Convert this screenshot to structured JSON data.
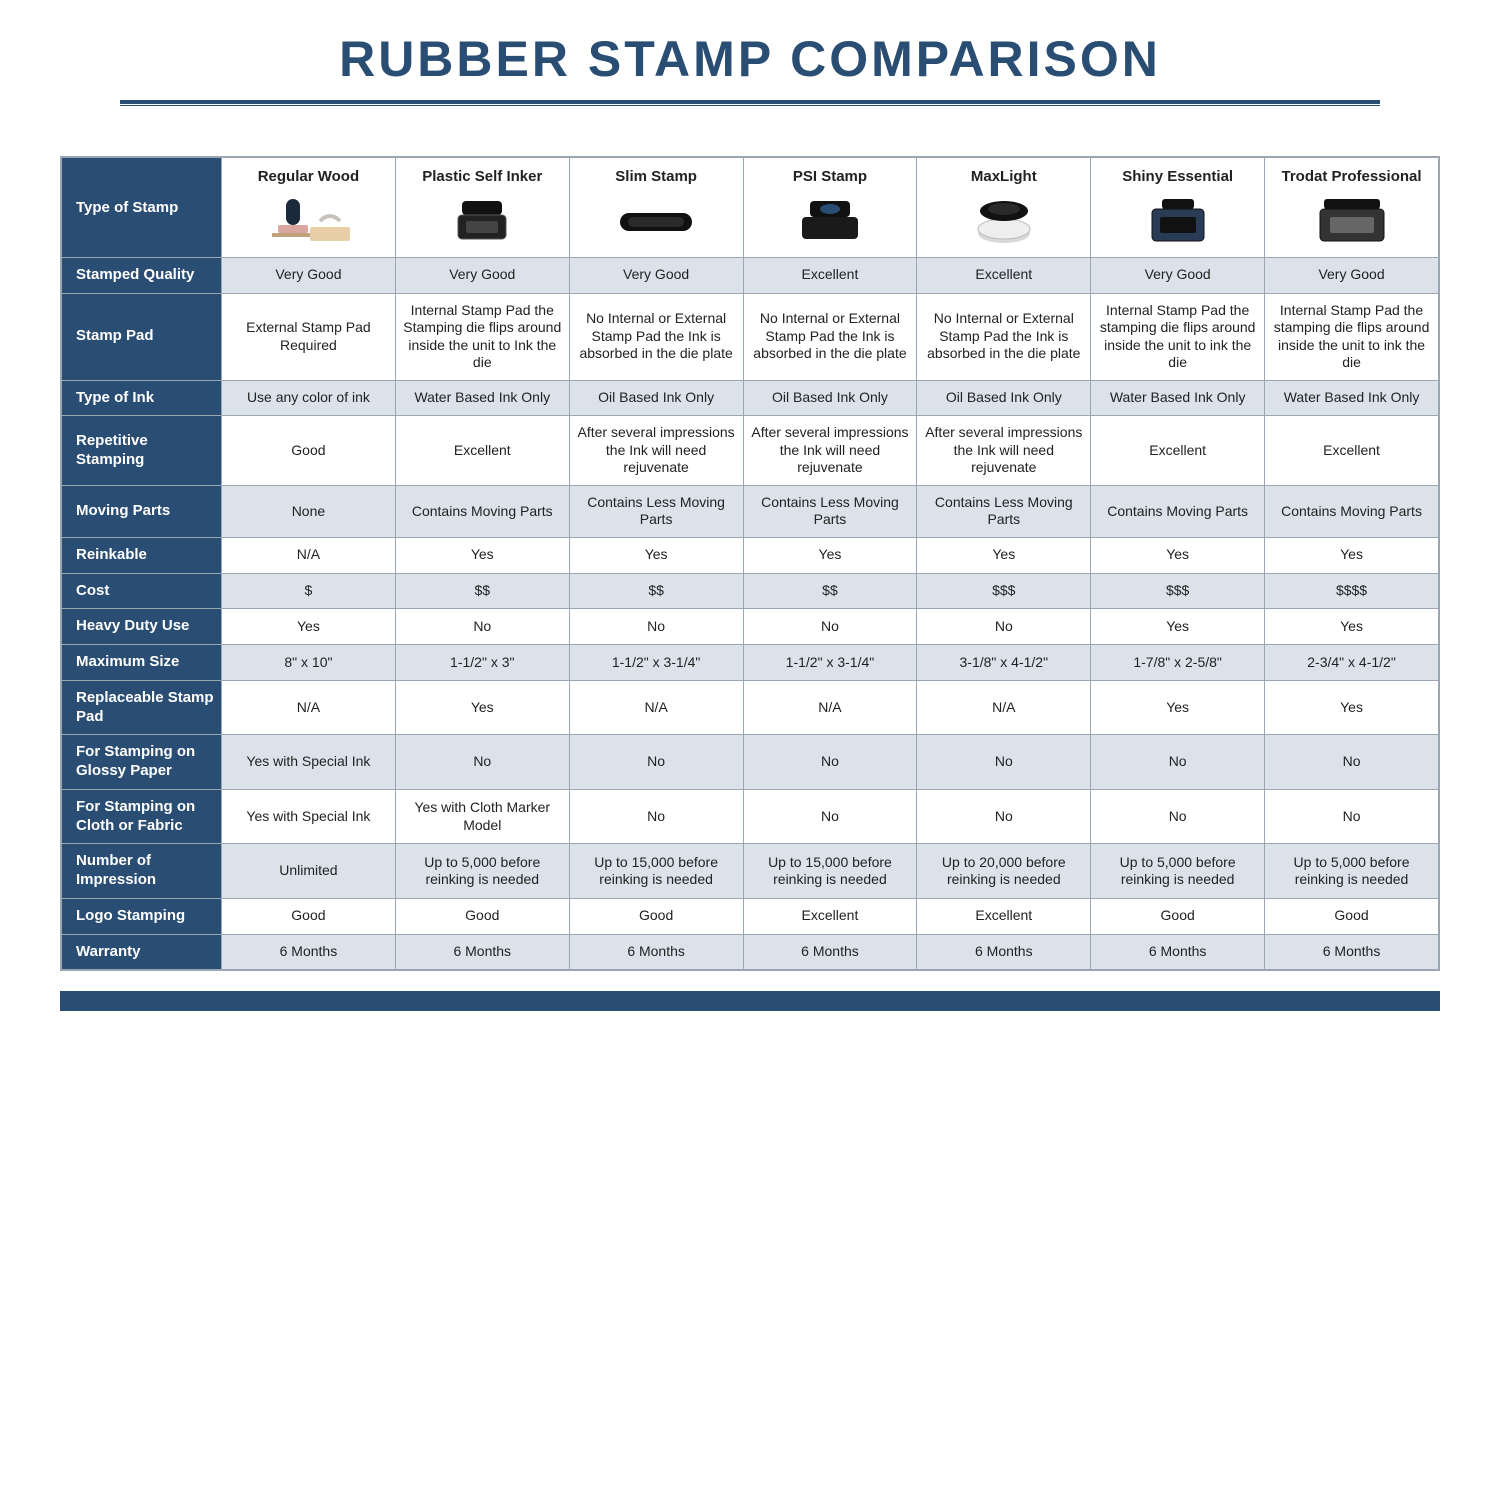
{
  "title": "RUBBER STAMP COMPARISON",
  "colors": {
    "navy": "#2a4d73",
    "zebra": "#dbe2ea",
    "border": "#9aa6b2",
    "white": "#ffffff",
    "text": "#222222"
  },
  "corner_label": "Type of Stamp",
  "columns": [
    {
      "label": "Regular Wood",
      "icon": "wood"
    },
    {
      "label": "Plastic Self Inker",
      "icon": "selfinker"
    },
    {
      "label": "Slim Stamp",
      "icon": "slim"
    },
    {
      "label": "PSI Stamp",
      "icon": "psi"
    },
    {
      "label": "MaxLight",
      "icon": "maxlight"
    },
    {
      "label": "Shiny Essential",
      "icon": "shiny"
    },
    {
      "label": "Trodat Professional",
      "icon": "trodat"
    }
  ],
  "rows": [
    {
      "label": "Stamped Quality",
      "cells": [
        "Very Good",
        "Very Good",
        "Very Good",
        "Excellent",
        "Excellent",
        "Very Good",
        "Very Good"
      ]
    },
    {
      "label": "Stamp Pad",
      "cells": [
        "External Stamp Pad Required",
        "Internal Stamp Pad the Stamping die flips around inside the unit to Ink the die",
        "No Internal or External Stamp Pad the Ink is absorbed in the die plate",
        "No Internal or External Stamp Pad the Ink is absorbed in the die plate",
        "No Internal or External Stamp Pad the Ink is absorbed in the die plate",
        "Internal Stamp Pad the stamping die flips around inside the unit to ink the die",
        "Internal Stamp Pad the stamping die flips around inside the unit to ink the die"
      ]
    },
    {
      "label": "Type of Ink",
      "cells": [
        "Use any color of ink",
        "Water Based Ink Only",
        "Oil Based Ink Only",
        "Oil Based Ink Only",
        "Oil Based Ink Only",
        "Water Based Ink Only",
        "Water Based Ink Only"
      ]
    },
    {
      "label": "Repetitive Stamping",
      "cells": [
        "Good",
        "Excellent",
        "After several impressions the Ink will need rejuvenate",
        "After several impressions the Ink will need rejuvenate",
        "After several impressions the Ink will need rejuvenate",
        "Excellent",
        "Excellent"
      ]
    },
    {
      "label": "Moving Parts",
      "cells": [
        "None",
        "Contains Moving Parts",
        "Contains Less Moving Parts",
        "Contains Less Moving Parts",
        "Contains Less Moving Parts",
        "Contains Moving Parts",
        "Contains Moving Parts"
      ]
    },
    {
      "label": "Reinkable",
      "cells": [
        "N/A",
        "Yes",
        "Yes",
        "Yes",
        "Yes",
        "Yes",
        "Yes"
      ]
    },
    {
      "label": "Cost",
      "cells": [
        "$",
        "$$",
        "$$",
        "$$",
        "$$$",
        "$$$",
        "$$$$"
      ]
    },
    {
      "label": "Heavy Duty Use",
      "cells": [
        "Yes",
        "No",
        "No",
        "No",
        "No",
        "Yes",
        "Yes"
      ]
    },
    {
      "label": "Maximum Size",
      "cells": [
        "8\" x 10\"",
        "1-1/2\" x 3\"",
        "1-1/2\" x 3-1/4\"",
        "1-1/2\" x 3-1/4\"",
        "3-1/8\" x 4-1/2\"",
        "1-7/8\" x 2-5/8\"",
        "2-3/4\" x 4-1/2\""
      ]
    },
    {
      "label": "Replaceable Stamp Pad",
      "cells": [
        "N/A",
        "Yes",
        "N/A",
        "N/A",
        "N/A",
        "Yes",
        "Yes"
      ]
    },
    {
      "label": "For Stamping on Glossy Paper",
      "cells": [
        "Yes with Special Ink",
        "No",
        "No",
        "No",
        "No",
        "No",
        "No"
      ]
    },
    {
      "label": "For Stamping on Cloth or Fabric",
      "cells": [
        "Yes with Special Ink",
        "Yes with Cloth Marker Model",
        "No",
        "No",
        "No",
        "No",
        "No"
      ]
    },
    {
      "label": "Number of Impression",
      "cells": [
        "Unlimited",
        "Up to 5,000 before reinking is needed",
        "Up to 15,000 before reinking is needed",
        "Up to 15,000 before reinking is needed",
        "Up to 20,000 before reinking is needed",
        "Up to 5,000 before reinking is needed",
        "Up to 5,000 before reinking is needed"
      ]
    },
    {
      "label": "Logo Stamping",
      "cells": [
        "Good",
        "Good",
        "Good",
        "Excellent",
        "Excellent",
        "Good",
        "Good"
      ]
    },
    {
      "label": "Warranty",
      "cells": [
        "6 Months",
        "6 Months",
        "6 Months",
        "6 Months",
        "6 Months",
        "6 Months",
        "6 Months"
      ]
    }
  ]
}
